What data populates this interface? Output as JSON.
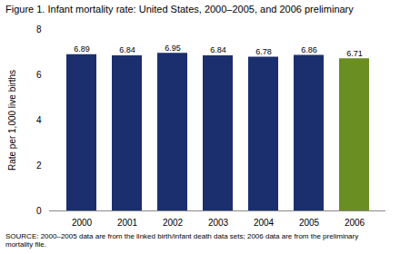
{
  "chart_data": {
    "type": "bar",
    "title": "Figure 1.  Infant mortality rate: United States, 2000–2005, and 2006 preliminary",
    "categories": [
      "2000",
      "2001",
      "2002",
      "2003",
      "2004",
      "2005",
      "2006"
    ],
    "values": [
      6.89,
      6.84,
      6.95,
      6.84,
      6.78,
      6.86,
      6.71
    ],
    "colors": [
      "#1B2F6E",
      "#1B2F6E",
      "#1B2F6E",
      "#1B2F6E",
      "#1B2F6E",
      "#1B2F6E",
      "#6B8E23"
    ],
    "ylabel": "Rate per 1,000 live births",
    "ylim": [
      0,
      8
    ],
    "yticks": [
      0,
      2,
      4,
      6,
      8
    ],
    "annotations": [
      "SOURCE: 2000–2005 data are from the linked birth/infant death data sets; 2006 data are from the preliminary\nmortality file."
    ],
    "grid": false,
    "data_labels": true
  }
}
